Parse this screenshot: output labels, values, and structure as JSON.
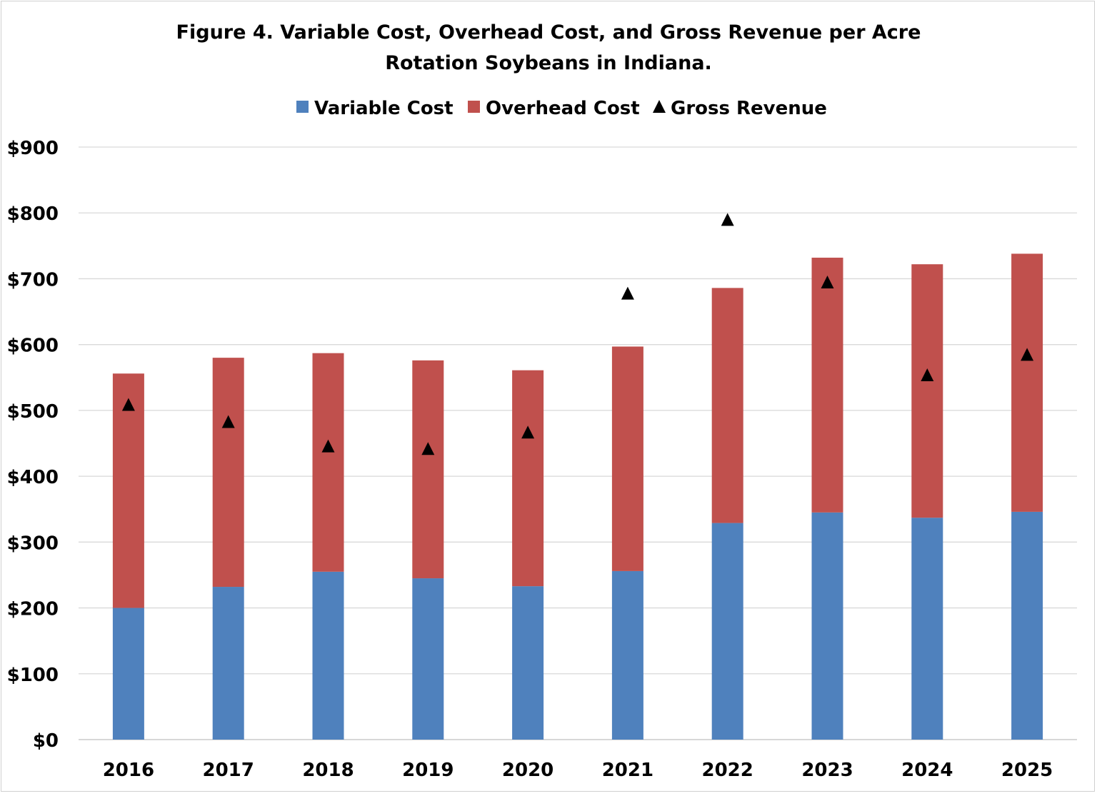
{
  "chart_data": {
    "type": "bar",
    "stacked": true,
    "title": "Figure 4. Variable Cost, Overhead Cost, and Gross Revenue per Acre",
    "subtitle": "Rotation Soybeans in Indiana.",
    "xlabel": "",
    "ylabel": "",
    "ylim": [
      0,
      900
    ],
    "y_ticks": [
      "$0",
      "$100",
      "$200",
      "$300",
      "$400",
      "$500",
      "$600",
      "$700",
      "$800",
      "$900"
    ],
    "grid": true,
    "legend_position": "top",
    "categories": [
      "2016",
      "2017",
      "2018",
      "2019",
      "2020",
      "2021",
      "2022",
      "2023",
      "2024",
      "2025"
    ],
    "series": [
      {
        "name": "Variable Cost",
        "kind": "bar",
        "color": "#4f81bd",
        "values": [
          200,
          232,
          255,
          245,
          233,
          256,
          329,
          345,
          337,
          346
        ]
      },
      {
        "name": "Overhead Cost",
        "kind": "bar",
        "color": "#c0504d",
        "values": [
          356,
          348,
          332,
          331,
          328,
          341,
          357,
          387,
          385,
          392
        ]
      },
      {
        "name": "Gross Revenue",
        "kind": "marker",
        "marker": "triangle",
        "color": "#000000",
        "values": [
          508,
          482,
          445,
          441,
          466,
          677,
          789,
          694,
          553,
          584
        ]
      }
    ]
  }
}
